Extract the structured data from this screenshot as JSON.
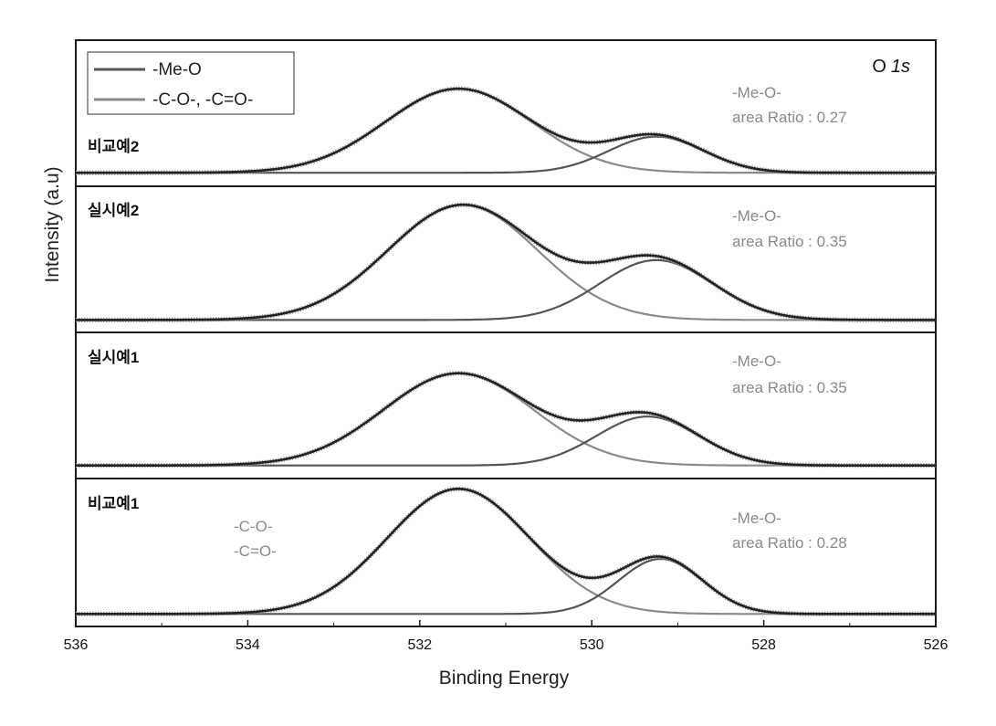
{
  "chart_data": {
    "type": "line",
    "title": "O 1s",
    "title_parts": {
      "element": "O",
      "orbital": "1s"
    },
    "xlabel": "Binding Energy",
    "ylabel": "Intensity (a.u)",
    "xlim": [
      536,
      526
    ],
    "x_reversed": true,
    "xticks": [
      "536",
      "534",
      "532",
      "530",
      "528",
      "526"
    ],
    "legend": {
      "position": "top-left",
      "entries": [
        {
          "name": "-Me-O",
          "color": "#555555"
        },
        {
          "name": "-C-O-, -C=O-",
          "color": "#8a8a8a"
        }
      ]
    },
    "panels": [
      {
        "label": "비교예2",
        "ratio_title": "-Me-O-",
        "ratio_text": "area Ratio : 0.27",
        "area_ratio": 0.27,
        "baseline": 0.08,
        "components": [
          {
            "name": "-C-O-, -C=O-",
            "center": 531.55,
            "fwhm": 2.0,
            "height": 1.0
          },
          {
            "name": "-Me-O",
            "center": 529.25,
            "fwhm": 1.3,
            "height": 0.43
          }
        ]
      },
      {
        "label": "실시예2",
        "ratio_title": "-Me-O-",
        "ratio_text": "area Ratio : 0.35",
        "area_ratio": 0.35,
        "baseline": 0.02,
        "components": [
          {
            "name": "-C-O-, -C=O-",
            "center": 531.5,
            "fwhm": 2.05,
            "height": 1.0
          },
          {
            "name": "-Me-O",
            "center": 529.25,
            "fwhm": 1.55,
            "height": 0.52
          }
        ]
      },
      {
        "label": "실시예1",
        "ratio_title": "-Me-O-",
        "ratio_text": "area Ratio : 0.35",
        "area_ratio": 0.35,
        "baseline": 0.05,
        "components": [
          {
            "name": "-C-O-, -C=O-",
            "center": 531.55,
            "fwhm": 2.05,
            "height": 0.98
          },
          {
            "name": "-Me-O",
            "center": 529.35,
            "fwhm": 1.4,
            "height": 0.52
          }
        ]
      },
      {
        "label": "비교예1",
        "ratio_title": "-Me-O-",
        "ratio_text": "area Ratio : 0.28",
        "area_ratio": 0.28,
        "baseline": 0.02,
        "assignment_lines": [
          "-C-O-",
          "-C=O-"
        ],
        "components": [
          {
            "name": "-C-O-, -C=O-",
            "center": 531.55,
            "fwhm": 1.95,
            "height": 1.0
          },
          {
            "name": "-Me-O",
            "center": 529.2,
            "fwhm": 1.15,
            "height": 0.44
          }
        ]
      }
    ]
  },
  "colors": {
    "total": "#222222",
    "component_co": "#8a8a8a",
    "component_meo": "#555555",
    "data_points": "#9a9a9a",
    "frame": "#1a1a1a"
  }
}
